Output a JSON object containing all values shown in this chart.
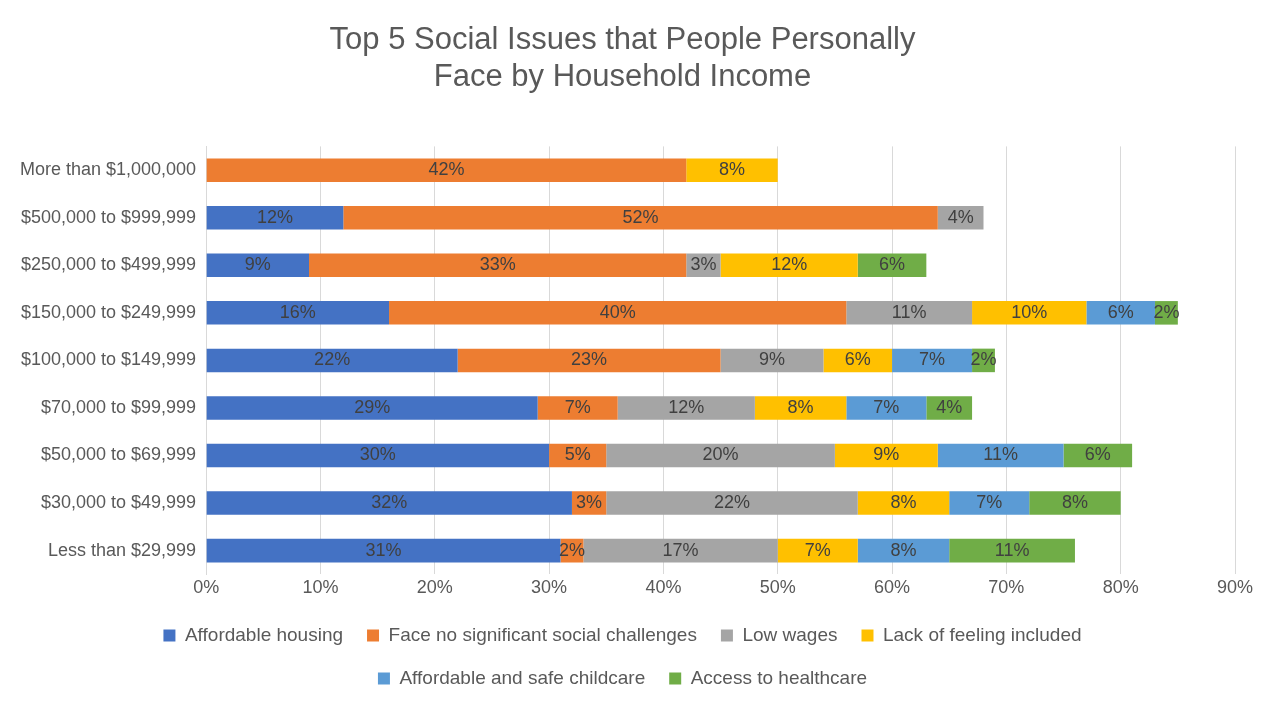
{
  "chart_data": {
    "type": "bar",
    "orientation": "horizontal",
    "stacked": true,
    "title": "Top 5 Social Issues that People Personally Face by Household Income",
    "categories": [
      "More than $1,000,000",
      "$500,000 to $999,999",
      "$250,000 to $499,999",
      "$150,000 to $249,999",
      "$100,000 to $149,999",
      "$70,000 to $99,999",
      "$50,000 to $69,999",
      "$30,000 to $49,999",
      "Less than $29,999"
    ],
    "series": [
      {
        "name": "Affordable housing",
        "color": "#4472c4",
        "values": [
          null,
          12,
          9,
          16,
          22,
          29,
          30,
          32,
          31
        ],
        "value_labels": [
          null,
          "12%",
          "9%",
          "16%",
          "22%",
          "29%",
          "30%",
          "32%",
          "31%"
        ]
      },
      {
        "name": "Face no significant social challenges",
        "color": "#ed7d31",
        "values": [
          42,
          52,
          33,
          40,
          23,
          7,
          5,
          3,
          2
        ],
        "value_labels": [
          "42%",
          "52%",
          "33%",
          "40%",
          "23%",
          "7%",
          "5%",
          "3%",
          "2%"
        ]
      },
      {
        "name": "Low wages",
        "color": "#a5a5a5",
        "values": [
          null,
          4,
          3,
          11,
          9,
          12,
          20,
          22,
          17
        ],
        "value_labels": [
          null,
          "4%",
          "3%",
          "11%",
          "9%",
          "12%",
          "20%",
          "22%",
          "17%"
        ]
      },
      {
        "name": "Lack of feeling included",
        "color": "#ffc000",
        "values": [
          8,
          null,
          12,
          10,
          6,
          8,
          9,
          8,
          7
        ],
        "value_labels": [
          "8%",
          null,
          "12%",
          "10%",
          "6%",
          "8%",
          "9%",
          "8%",
          "7%"
        ]
      },
      {
        "name": "Affordable and safe childcare",
        "color": "#5b9bd5",
        "values": [
          null,
          null,
          null,
          6,
          7,
          7,
          11,
          7,
          8
        ],
        "value_labels": [
          null,
          null,
          null,
          "6%",
          "7%",
          "7%",
          "11%",
          "7%",
          "8%"
        ]
      },
      {
        "name": "Access to healthcare",
        "color": "#70ad47",
        "values": [
          null,
          null,
          6,
          2,
          2,
          4,
          6,
          8,
          11
        ],
        "value_labels": [
          null,
          null,
          "6%",
          "2%",
          "2%",
          "4%",
          "6%",
          "8%",
          "11%"
        ]
      }
    ],
    "xlim": [
      0,
      90
    ],
    "xticks": [
      {
        "value": 0,
        "label": "0%"
      },
      {
        "value": 10,
        "label": "10%"
      },
      {
        "value": 20,
        "label": "20%"
      },
      {
        "value": 30,
        "label": "30%"
      },
      {
        "value": 40,
        "label": "40%"
      },
      {
        "value": 50,
        "label": "50%"
      },
      {
        "value": 60,
        "label": "60%"
      },
      {
        "value": 70,
        "label": "70%"
      },
      {
        "value": 80,
        "label": "80%"
      },
      {
        "value": 90,
        "label": "90%"
      }
    ],
    "grid": "x",
    "legend": "bottom"
  }
}
